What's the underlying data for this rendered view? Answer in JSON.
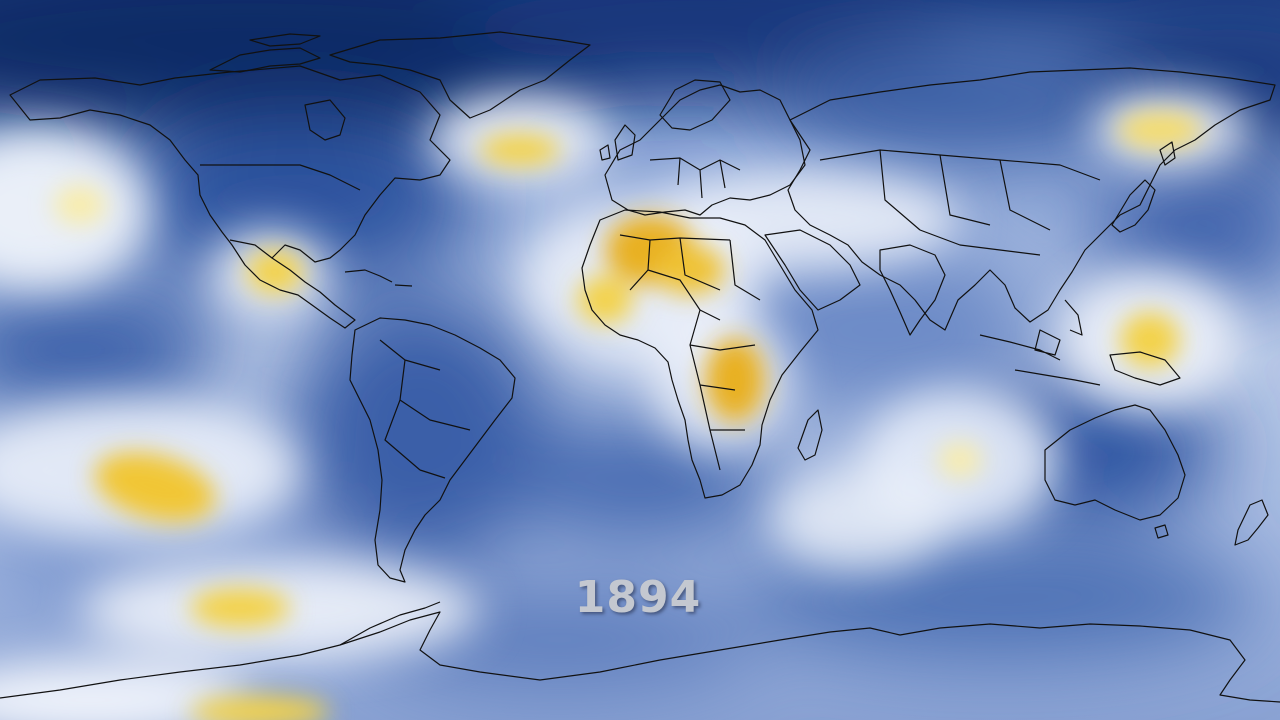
{
  "map": {
    "year": "1894",
    "palette": {
      "deep_blue": "#0c2a66",
      "mid_blue": "#3f63a8",
      "light_blue": "#a9bde2",
      "pale": "#eef2fa",
      "yellow": "#f3d24a",
      "orange_yellow": "#e8b020",
      "coastline": "#111111"
    }
  }
}
